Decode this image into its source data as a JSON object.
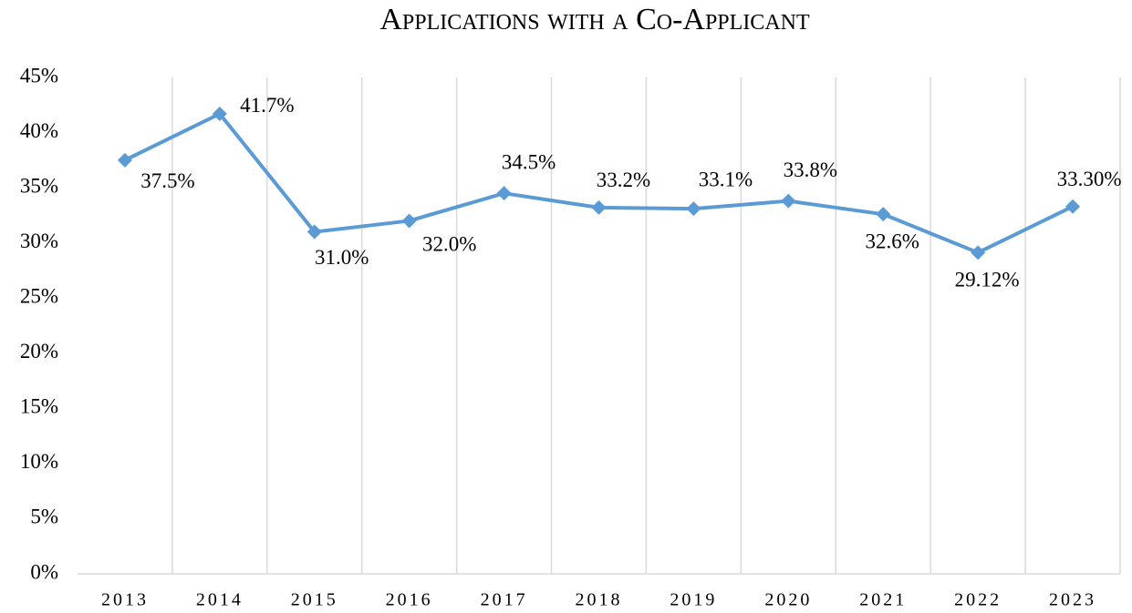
{
  "chart_data": {
    "type": "line",
    "title": "Applications with a Co-Applicant",
    "categories": [
      "2013",
      "2014",
      "2015",
      "2016",
      "2017",
      "2018",
      "2019",
      "2020",
      "2021",
      "2022",
      "2023"
    ],
    "series": [
      {
        "color": "#5b9bd5",
        "values": [
          37.5,
          41.7,
          31.0,
          32.0,
          34.5,
          33.2,
          33.1,
          33.8,
          32.6,
          29.12,
          33.3
        ],
        "value_labels": [
          "37.5%",
          "41.7%",
          "31.0%",
          "32.0%",
          "34.5%",
          "33.2%",
          "33.1%",
          "33.8%",
          "32.6%",
          "29.12%",
          "33.30%"
        ]
      }
    ],
    "ylim": [
      0,
      45
    ],
    "yticks": [
      {
        "value": 0,
        "label": "0%"
      },
      {
        "value": 5,
        "label": "5%"
      },
      {
        "value": 10,
        "label": "10%"
      },
      {
        "value": 15,
        "label": "15%"
      },
      {
        "value": 20,
        "label": "20%"
      },
      {
        "value": 25,
        "label": "25%"
      },
      {
        "value": 30,
        "label": "30%"
      },
      {
        "value": 35,
        "label": "35%"
      },
      {
        "value": 40,
        "label": "40%"
      },
      {
        "value": 45,
        "label": "45%"
      }
    ],
    "grid": true
  }
}
